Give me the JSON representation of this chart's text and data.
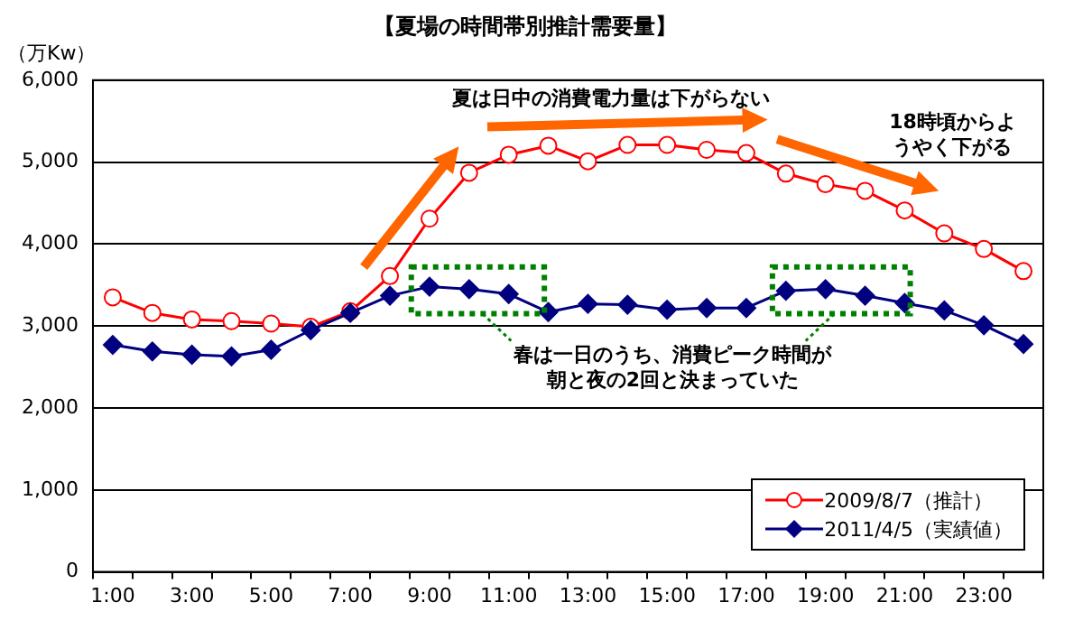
{
  "chart_data": {
    "type": "line",
    "title": "【夏場の時間帯別推計需要量】",
    "ylabel": "（万Kw）",
    "categories": [
      "1:00",
      null,
      "3:00",
      null,
      "5:00",
      null,
      "7:00",
      null,
      "9:00",
      null,
      "11:00",
      null,
      "13:00",
      null,
      "15:00",
      null,
      "17:00",
      null,
      "19:00",
      null,
      "21:00",
      null,
      "23:00",
      null
    ],
    "series": [
      {
        "name": "2009/8/7（推計）",
        "color": "#ff0000",
        "marker": "circle",
        "values": [
          3350,
          3160,
          3080,
          3060,
          3030,
          2990,
          3180,
          3610,
          4310,
          4870,
          5090,
          5200,
          5010,
          5210,
          5210,
          5150,
          5110,
          4860,
          4730,
          4650,
          4410,
          4130,
          3940,
          3670
        ]
      },
      {
        "name": "2011/4/5（実績値）",
        "color": "#000080",
        "marker": "diamond",
        "values": [
          2770,
          2690,
          2650,
          2630,
          2710,
          2950,
          3160,
          3370,
          3480,
          3450,
          3390,
          3170,
          3270,
          3260,
          3200,
          3220,
          3220,
          3430,
          3450,
          3370,
          3280,
          3190,
          3010,
          2780
        ]
      }
    ],
    "ylim": [
      0,
      6000
    ],
    "yticks": [
      {
        "value": 0,
        "label": "0"
      },
      {
        "value": 1000,
        "label": "1,000"
      },
      {
        "value": 2000,
        "label": "2,000"
      },
      {
        "value": 3000,
        "label": "3,000"
      },
      {
        "value": 4000,
        "label": "4,000"
      },
      {
        "value": 5000,
        "label": "5,000"
      },
      {
        "value": 6000,
        "label": "6,000"
      }
    ],
    "grid": "y",
    "legend": "bottom right",
    "line_style": "solid",
    "annotations": [
      "夏は日中の消費電力量は下がらない",
      "18時頃からようやく下がる",
      "春は一日のうち、消費ピーク時間が朝と夜の2回と決まっていた"
    ]
  }
}
